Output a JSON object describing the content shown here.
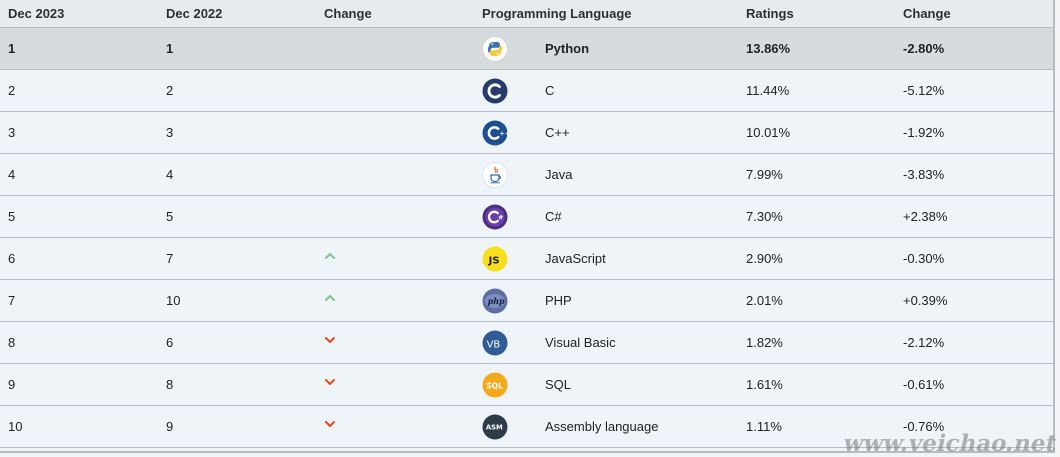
{
  "headers": {
    "dec2023": "Dec 2023",
    "dec2022": "Dec 2022",
    "change": "Change",
    "language": "Programming Language",
    "ratings": "Ratings",
    "ratings_change": "Change"
  },
  "rows": [
    {
      "rank2023": "1",
      "rank2022": "1",
      "trend": "none",
      "icon": "python-icon",
      "language": "Python",
      "rating": "13.86%",
      "change": "-2.80%"
    },
    {
      "rank2023": "2",
      "rank2022": "2",
      "trend": "none",
      "icon": "c-icon",
      "language": "C",
      "rating": "11.44%",
      "change": "-5.12%"
    },
    {
      "rank2023": "3",
      "rank2022": "3",
      "trend": "none",
      "icon": "cpp-icon",
      "language": "C++",
      "rating": "10.01%",
      "change": "-1.92%"
    },
    {
      "rank2023": "4",
      "rank2022": "4",
      "trend": "none",
      "icon": "java-icon",
      "language": "Java",
      "rating": "7.99%",
      "change": "-3.83%"
    },
    {
      "rank2023": "5",
      "rank2022": "5",
      "trend": "none",
      "icon": "csharp-icon",
      "language": "C#",
      "rating": "7.30%",
      "change": "+2.38%"
    },
    {
      "rank2023": "6",
      "rank2022": "7",
      "trend": "up",
      "icon": "javascript-icon",
      "language": "JavaScript",
      "rating": "2.90%",
      "change": "-0.30%"
    },
    {
      "rank2023": "7",
      "rank2022": "10",
      "trend": "up",
      "icon": "php-icon",
      "language": "PHP",
      "rating": "2.01%",
      "change": "+0.39%"
    },
    {
      "rank2023": "8",
      "rank2022": "6",
      "trend": "down",
      "icon": "visual-basic-icon",
      "language": "Visual Basic",
      "rating": "1.82%",
      "change": "-2.12%"
    },
    {
      "rank2023": "9",
      "rank2022": "8",
      "trend": "down",
      "icon": "sql-icon",
      "language": "SQL",
      "rating": "1.61%",
      "change": "-0.61%"
    },
    {
      "rank2023": "10",
      "rank2022": "9",
      "trend": "down",
      "icon": "assembly-icon",
      "language": "Assembly language",
      "rating": "1.11%",
      "change": "-0.76%"
    }
  ],
  "watermark": "www.veichao.net",
  "colors": {
    "up": "#7fc58b",
    "down": "#e24a1f",
    "top_row": "#d8dbde",
    "row": "#eef4f8"
  }
}
